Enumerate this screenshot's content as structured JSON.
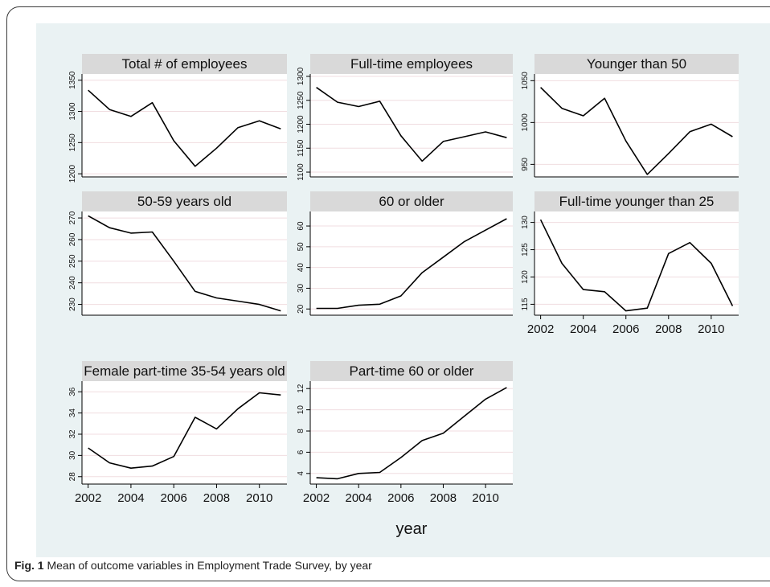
{
  "caption": {
    "label": "Fig. 1",
    "text": "Mean of outcome variables in Employment Trade Survey, by year"
  },
  "colors": {
    "background": "#eaf2f3",
    "plot_bg": "#ffffff",
    "title_bar": "#d9d9d9",
    "line": "#000000",
    "grid": "#f0dde0"
  },
  "chart_data": {
    "type": "line",
    "xlabel": "year",
    "x": [
      2002,
      2003,
      2004,
      2005,
      2006,
      2007,
      2008,
      2009,
      2010,
      2011
    ],
    "xticks": [
      "2002",
      "2004",
      "2006",
      "2008",
      "2010"
    ],
    "panels": [
      {
        "title": "Total # of employees",
        "ylim": [
          1195,
          1360
        ],
        "yticks": [
          "1200",
          "1250",
          "1300",
          "1350"
        ],
        "values": [
          1334,
          1303,
          1292,
          1314,
          1253,
          1212,
          1241,
          1274,
          1285,
          1272
        ],
        "show_xaxis": false
      },
      {
        "title": "Full-time employees",
        "ylim": [
          1090,
          1305
        ],
        "yticks": [
          "1100",
          "1150",
          "1200",
          "1250",
          "1300"
        ],
        "values": [
          1277,
          1246,
          1237,
          1248,
          1176,
          1123,
          1164,
          1174,
          1184,
          1172
        ],
        "show_xaxis": false
      },
      {
        "title": "Younger than 50",
        "ylim": [
          935,
          1058
        ],
        "yticks": [
          "950",
          "1000",
          "1050"
        ],
        "values": [
          1042,
          1017,
          1008,
          1029,
          978,
          938,
          963,
          989,
          998,
          983
        ],
        "show_xaxis": false
      },
      {
        "title": "50-59 years old",
        "ylim": [
          225,
          273
        ],
        "yticks": [
          "230",
          "240",
          "250",
          "260",
          "270"
        ],
        "values": [
          271,
          265.5,
          263,
          263.5,
          250,
          236,
          233,
          231.5,
          230,
          227
        ],
        "show_xaxis": false
      },
      {
        "title": "60 or older",
        "ylim": [
          17,
          67
        ],
        "yticks": [
          "20",
          "30",
          "40",
          "50",
          "60"
        ],
        "values": [
          20.3,
          20.3,
          21.8,
          22.3,
          26.3,
          37.5,
          45,
          52.5,
          58,
          63.5
        ],
        "show_xaxis": false
      },
      {
        "title": "Full-time younger than 25",
        "ylim": [
          113,
          132
        ],
        "yticks": [
          "115",
          "120",
          "125",
          "130"
        ],
        "values": [
          130.5,
          122.5,
          117.7,
          117.3,
          113.8,
          114.3,
          124.3,
          126.3,
          122.5,
          114.7
        ],
        "show_xaxis": true
      },
      {
        "title": "Female part-time 35-54 years old",
        "ylim": [
          27.3,
          37
        ],
        "yticks": [
          "28",
          "30",
          "32",
          "34",
          "36"
        ],
        "values": [
          30.7,
          29.3,
          28.8,
          29,
          29.9,
          33.6,
          32.5,
          34.4,
          35.9,
          35.7
        ],
        "show_xaxis": true
      },
      {
        "title": "Part-time 60 or older",
        "ylim": [
          3,
          12.7
        ],
        "yticks": [
          "4",
          "6",
          "8",
          "10",
          "12"
        ],
        "values": [
          3.6,
          3.5,
          4,
          4.1,
          5.5,
          7.1,
          7.8,
          9.4,
          11,
          12.1
        ],
        "show_xaxis": true
      }
    ]
  }
}
